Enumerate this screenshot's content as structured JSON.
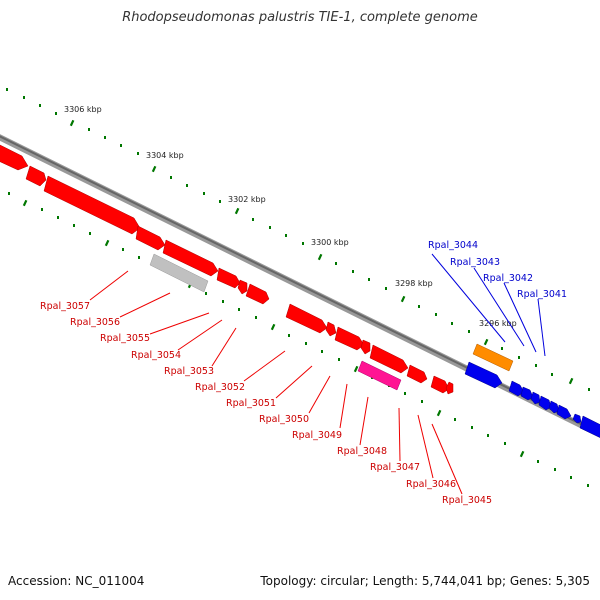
{
  "title": "Rhodopseudomonas palustris TIE-1, complete genome",
  "footer": {
    "accession": "Accession: NC_011004",
    "topology": "Topology: circular; Length: 5,744,041 bp; Genes: 5,305"
  },
  "colors": {
    "red_genes": "#ff0000",
    "blue_genes": "#0000ee",
    "gray_gene": "#c0c0c0",
    "orange_gene": "#ff8c00",
    "pink_gene": "#ff1493",
    "tick_green": "#007700",
    "backbone": "#777777"
  },
  "kbp_labels": [
    "3306 kbp",
    "3304 kbp",
    "3302 kbp",
    "3300 kbp",
    "3298 kbp",
    "3296 kbp"
  ],
  "red_labels": [
    "Rpal_3057",
    "Rpal_3056",
    "Rpal_3055",
    "Rpal_3054",
    "Rpal_3053",
    "Rpal_3052",
    "Rpal_3051",
    "Rpal_3050",
    "Rpal_3049",
    "Rpal_3048",
    "Rpal_3047",
    "Rpal_3046",
    "Rpal_3045"
  ],
  "blue_labels": [
    "Rpal_3044",
    "Rpal_3043",
    "Rpal_3042",
    "Rpal_3041"
  ]
}
